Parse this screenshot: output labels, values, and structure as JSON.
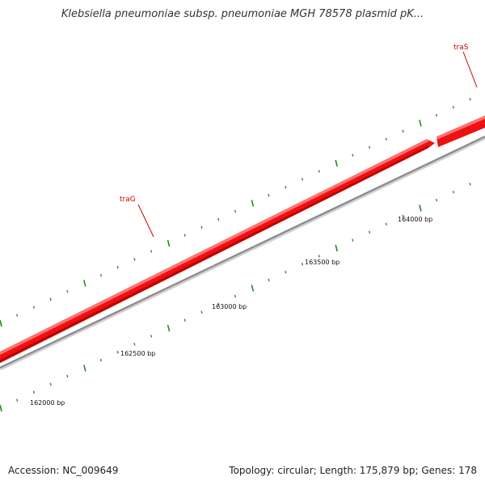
{
  "title": "Klebsiella pneumoniae subsp. pneumoniae MGH 78578 plasmid pK...",
  "accession": "Accession: NC_009649",
  "summary": "Topology: circular; Length: 175,879 bp; Genes: 178",
  "colors": {
    "gene": "#ee1111",
    "gene_label": "#cc0000",
    "backbone": "#888888",
    "tick": "#228b22",
    "label_text": "#111111"
  },
  "positions": [
    {
      "label": "162000 bp",
      "bp": 162000
    },
    {
      "label": "162500 bp",
      "bp": 162500
    },
    {
      "label": "163000 bp",
      "bp": 163000
    },
    {
      "label": "163500 bp",
      "bp": 163500
    },
    {
      "label": "164000 bp",
      "bp": 164000
    }
  ],
  "genes": [
    {
      "name": "traG",
      "strand": "+"
    },
    {
      "name": "traS",
      "strand": "+"
    }
  ]
}
